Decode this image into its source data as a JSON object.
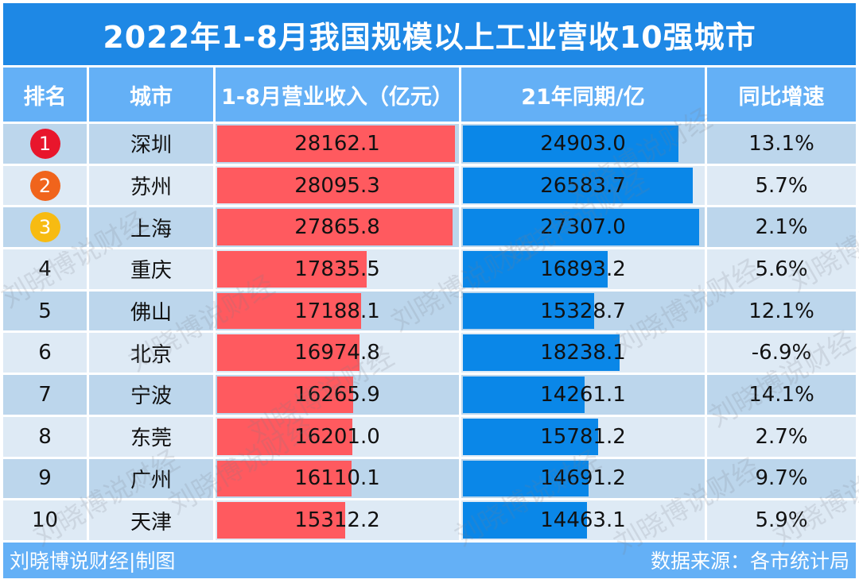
{
  "header": {
    "title": "2022年1-8月我国规模以上工业营收10强城市"
  },
  "columns": [
    "排名",
    "城市",
    "1-8月营业收入（亿元）",
    "21年同期/亿",
    "同比增速"
  ],
  "colors": {
    "title_bg": "#1e88e5",
    "header_bg": "#64b0f6",
    "bar_2022": "#ff5a5f",
    "bar_2021": "#0a87e8",
    "row_dark": "#bcd6ec",
    "row_light": "#deeaf5",
    "medal_1": "#e8162c",
    "medal_2": "#f0641c",
    "medal_3": "#f7bb12"
  },
  "rows": [
    {
      "rank": "1",
      "city": "深圳",
      "rev2022": "28162.1",
      "rev2021": "24903.0",
      "growth": "13.1%"
    },
    {
      "rank": "2",
      "city": "苏州",
      "rev2022": "28095.3",
      "rev2021": "26583.7",
      "growth": "5.7%"
    },
    {
      "rank": "3",
      "city": "上海",
      "rev2022": "27865.8",
      "rev2021": "27307.0",
      "growth": "2.1%"
    },
    {
      "rank": "4",
      "city": "重庆",
      "rev2022": "17835.5",
      "rev2021": "16893.2",
      "growth": "5.6%"
    },
    {
      "rank": "5",
      "city": "佛山",
      "rev2022": "17188.1",
      "rev2021": "15328.7",
      "growth": "12.1%"
    },
    {
      "rank": "6",
      "city": "北京",
      "rev2022": "16974.8",
      "rev2021": "18238.1",
      "growth": "-6.9%"
    },
    {
      "rank": "7",
      "city": "宁波",
      "rev2022": "16265.9",
      "rev2021": "14261.1",
      "growth": "14.1%"
    },
    {
      "rank": "8",
      "city": "东莞",
      "rev2022": "16201.0",
      "rev2021": "15781.2",
      "growth": "2.7%"
    },
    {
      "rank": "9",
      "city": "广州",
      "rev2022": "16110.1",
      "rev2021": "14691.2",
      "growth": "9.7%"
    },
    {
      "rank": "10",
      "city": "天津",
      "rev2022": "15312.2",
      "rev2021": "14463.1",
      "growth": "5.9%"
    }
  ],
  "footer": {
    "left": "刘晓博说财经|制图",
    "right": "数据来源：各市统计局"
  },
  "watermark": "刘晓博说财经",
  "chart_data": {
    "type": "table",
    "title": "2022年1-8月我国规模以上工业营收10强城市",
    "categories": [
      "深圳",
      "苏州",
      "上海",
      "重庆",
      "佛山",
      "北京",
      "宁波",
      "东莞",
      "广州",
      "天津"
    ],
    "series": [
      {
        "name": "1-8月营业收入（亿元）",
        "values": [
          28162.1,
          28095.3,
          27865.8,
          17835.5,
          17188.1,
          16974.8,
          16265.9,
          16201.0,
          16110.1,
          15312.2
        ]
      },
      {
        "name": "21年同期/亿",
        "values": [
          24903.0,
          26583.7,
          27307.0,
          16893.2,
          15328.7,
          18238.1,
          14261.1,
          15781.2,
          14691.2,
          14463.1
        ]
      },
      {
        "name": "同比增速",
        "values": [
          13.1,
          5.7,
          2.1,
          5.6,
          12.1,
          -6.9,
          14.1,
          2.7,
          9.7,
          5.9
        ]
      }
    ],
    "xlabel": "",
    "ylabel": "",
    "source": "数据来源：各市统计局"
  }
}
